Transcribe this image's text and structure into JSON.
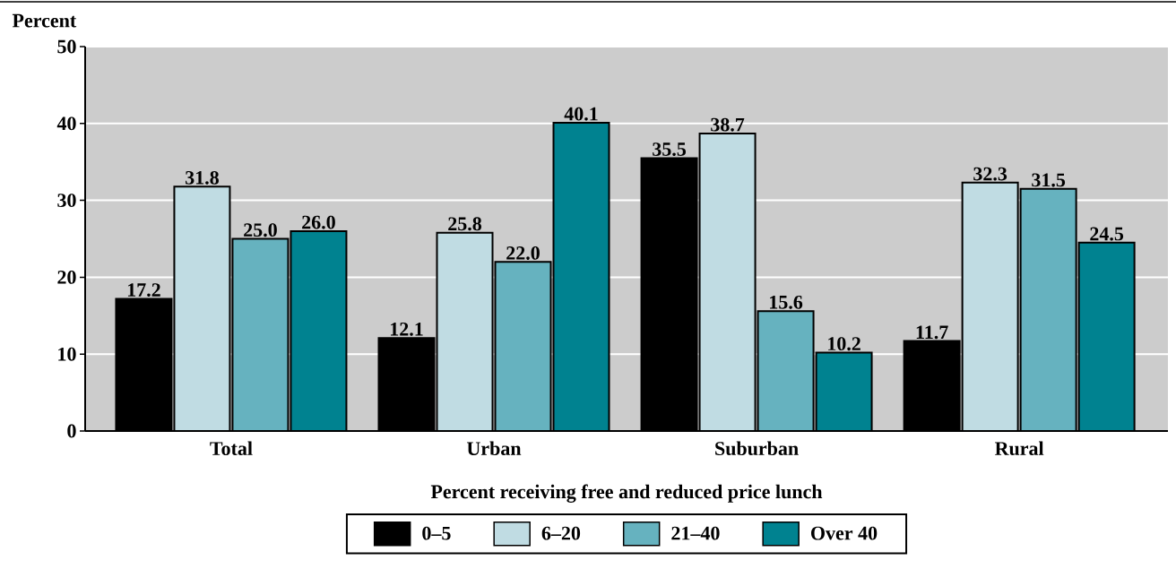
{
  "chart_data": {
    "type": "bar",
    "ylabel": "Percent",
    "xlabel": "Percent receiving free and reduced price lunch",
    "categories": [
      "Total",
      "Urban",
      "Suburban",
      "Rural"
    ],
    "series": [
      {
        "name": "0–5",
        "color": "#000000",
        "values": [
          17.2,
          12.1,
          35.5,
          11.7
        ],
        "value_labels": [
          "17.2",
          "12.1",
          "35.5",
          "11.7"
        ]
      },
      {
        "name": "6–20",
        "color": "#c0dce3",
        "values": [
          31.8,
          25.8,
          38.7,
          32.3
        ],
        "value_labels": [
          "31.8",
          "25.8",
          "38.7",
          "32.3"
        ]
      },
      {
        "name": "21–40",
        "color": "#66b2bf",
        "values": [
          25.0,
          22.0,
          15.6,
          31.5
        ],
        "value_labels": [
          "25.0",
          "22.0",
          "15.6",
          "31.5"
        ]
      },
      {
        "name": "Over 40",
        "color": "#008290",
        "values": [
          26.0,
          40.1,
          10.2,
          24.5
        ],
        "value_labels": [
          "26.0",
          "40.1",
          "10.2",
          "24.5"
        ]
      }
    ],
    "ylim": [
      0,
      50
    ],
    "yticks": [
      0,
      10,
      20,
      30,
      40,
      50
    ],
    "grid": "y",
    "legend": "bottom"
  }
}
